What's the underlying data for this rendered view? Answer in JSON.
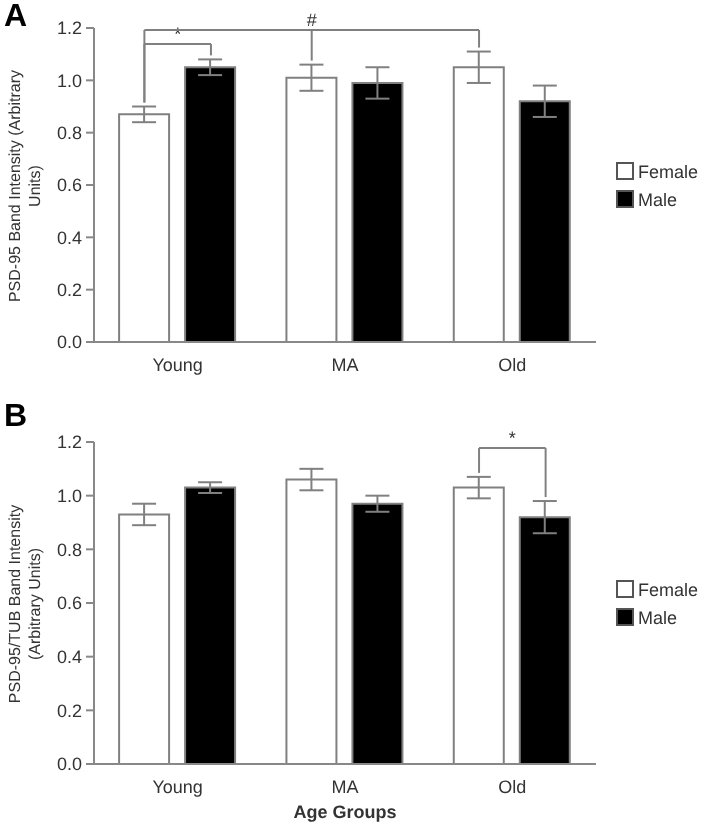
{
  "chart_data": [
    {
      "type": "bar",
      "title": "A",
      "ylabel": "PSD-95 Band Intensity (Arbitrary Units)",
      "categories": [
        "Young",
        "MA",
        "Old"
      ],
      "series": [
        {
          "name": "Female",
          "color": "#ffffff",
          "values": [
            0.87,
            1.01,
            1.05
          ],
          "errors": [
            0.03,
            0.05,
            0.06
          ]
        },
        {
          "name": "Male",
          "color": "#000000",
          "values": [
            1.05,
            0.99,
            0.92
          ],
          "errors": [
            0.03,
            0.06,
            0.06
          ]
        }
      ],
      "ylim": [
        0,
        1.2
      ],
      "yticks": [
        {
          "value": 0,
          "label": "0.0"
        },
        {
          "value": 0.2,
          "label": "0.2"
        },
        {
          "value": 0.4,
          "label": "0.4"
        },
        {
          "value": 0.6,
          "label": "0.6"
        },
        {
          "value": 0.8,
          "label": "0.8"
        },
        {
          "value": 1,
          "label": "1.0"
        },
        {
          "value": 1.2,
          "label": "1.2"
        }
      ],
      "annotations": [
        "*",
        "#"
      ],
      "legend": "right",
      "grid": false
    },
    {
      "type": "bar",
      "title": "B",
      "ylabel": "PSD-95/TUB Band Intensity (Arbitrary Units)",
      "xlabel": "Age Groups",
      "categories": [
        "Young",
        "MA",
        "Old"
      ],
      "series": [
        {
          "name": "Female",
          "color": "#ffffff",
          "values": [
            0.93,
            1.06,
            1.03
          ],
          "errors": [
            0.04,
            0.04,
            0.04
          ]
        },
        {
          "name": "Male",
          "color": "#000000",
          "values": [
            1.03,
            0.97,
            0.92
          ],
          "errors": [
            0.02,
            0.03,
            0.06
          ]
        }
      ],
      "ylim": [
        0,
        1.2
      ],
      "yticks": [
        {
          "value": 0,
          "label": "0.0"
        },
        {
          "value": 0.2,
          "label": "0.2"
        },
        {
          "value": 0.4,
          "label": "0.4"
        },
        {
          "value": 0.6,
          "label": "0.6"
        },
        {
          "value": 0.8,
          "label": "0.8"
        },
        {
          "value": 1,
          "label": "1.0"
        },
        {
          "value": 1.2,
          "label": "1.2"
        }
      ],
      "annotations": [
        "*"
      ],
      "legend": "right",
      "grid": false
    }
  ]
}
